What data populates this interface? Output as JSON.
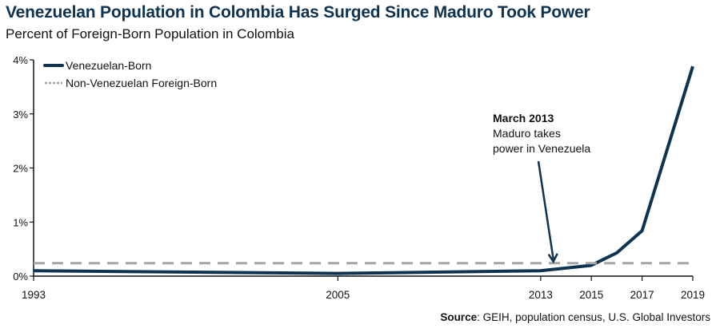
{
  "chart_data": {
    "type": "line",
    "title": "Venezuelan Population in Colombia Has Surged Since Maduro Took Power",
    "subtitle": "Percent of Foreign-Born Population in Colombia",
    "xlabel": "",
    "ylabel": "",
    "xlim": [
      1993,
      2019
    ],
    "ylim": [
      0,
      4
    ],
    "x_ticks": [
      1993,
      2005,
      2013,
      2015,
      2017,
      2019
    ],
    "x_tick_labels": [
      "1993",
      "2005",
      "2013",
      "2015",
      "2017",
      "2019"
    ],
    "y_ticks": [
      0,
      1,
      2,
      3,
      4
    ],
    "y_tick_labels": [
      "0%",
      "1%",
      "2%",
      "3%",
      "4%"
    ],
    "grid": false,
    "legend_position": "top-left",
    "series": [
      {
        "name": "Venezuelan-Born",
        "color": "#0d3350",
        "style": "solid",
        "x": [
          1993,
          2005,
          2013,
          2015,
          2016,
          2017,
          2019
        ],
        "values": [
          0.1,
          0.05,
          0.1,
          0.2,
          0.43,
          0.84,
          3.88
        ]
      },
      {
        "name": "Non-Venezuelan Foreign-Born",
        "color": "#a6a6a6",
        "style": "dashed",
        "x": [
          1993,
          2019
        ],
        "values": [
          0.24,
          0.24
        ]
      }
    ],
    "annotation": {
      "title": "March 2013",
      "line1": "Maduro takes",
      "line2": "power in Venezuela",
      "x": 2013.5,
      "y": 0.24
    },
    "source_label": "Source",
    "source_text": ": GEIH, population census, U.S. Global Investors"
  }
}
